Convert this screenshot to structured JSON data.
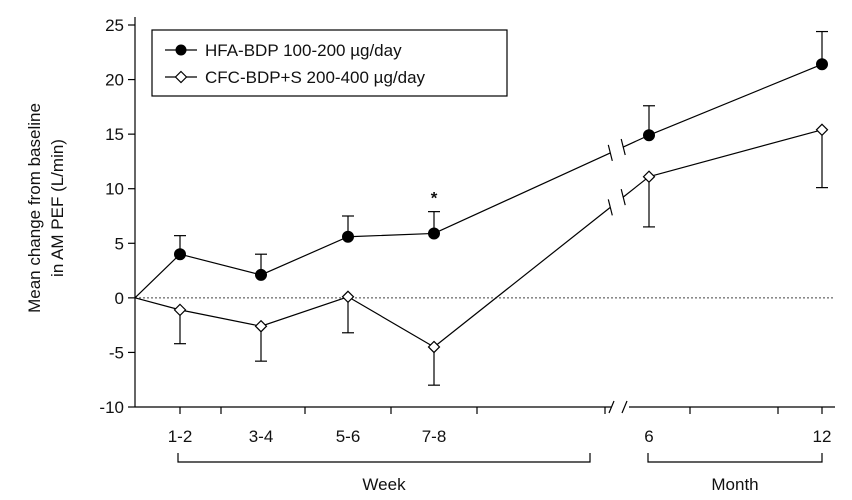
{
  "chart_data": {
    "type": "line",
    "ylabel": [
      "Mean change from baseline",
      "in AM PEF (L/min)"
    ],
    "ylim": [
      -10,
      25
    ],
    "yticks": [
      25,
      20,
      15,
      10,
      5,
      0,
      -5,
      -10
    ],
    "ytick_labels": [
      "25",
      "20",
      "15",
      "10",
      "5",
      "0",
      "-5",
      "-10"
    ],
    "categories": [
      "1-2",
      "3-4",
      "5-6",
      "7-8",
      "6",
      "12"
    ],
    "groups": [
      {
        "label": "Week",
        "categories": [
          "1-2",
          "3-4",
          "5-6",
          "7-8"
        ]
      },
      {
        "label": "Month",
        "categories": [
          "6",
          "12"
        ]
      }
    ],
    "series": [
      {
        "name": "HFA-BDP 100-200 µg/day",
        "marker": "filled-circle",
        "color": "#000000",
        "baseline": 0,
        "values": [
          4.0,
          2.1,
          5.6,
          5.9,
          14.9,
          21.4
        ],
        "error_upper": [
          5.7,
          4.0,
          7.5,
          7.9,
          17.6,
          24.4
        ]
      },
      {
        "name": "CFC-BDP+S 200-400 µg/day",
        "marker": "open-diamond",
        "color": "#000000",
        "baseline": 0,
        "values": [
          -1.1,
          -2.6,
          0.1,
          -4.5,
          11.1,
          15.4
        ],
        "error_lower": [
          -4.2,
          -5.8,
          -3.2,
          -8.0,
          6.5,
          10.1
        ]
      }
    ],
    "annotations": [
      {
        "text": "*",
        "category": "7-8"
      }
    ],
    "reference_line": {
      "y": 0,
      "style": "dotted"
    },
    "axis_break": "between 7-8 and 6",
    "legend_position": "top-left",
    "grid": false
  }
}
